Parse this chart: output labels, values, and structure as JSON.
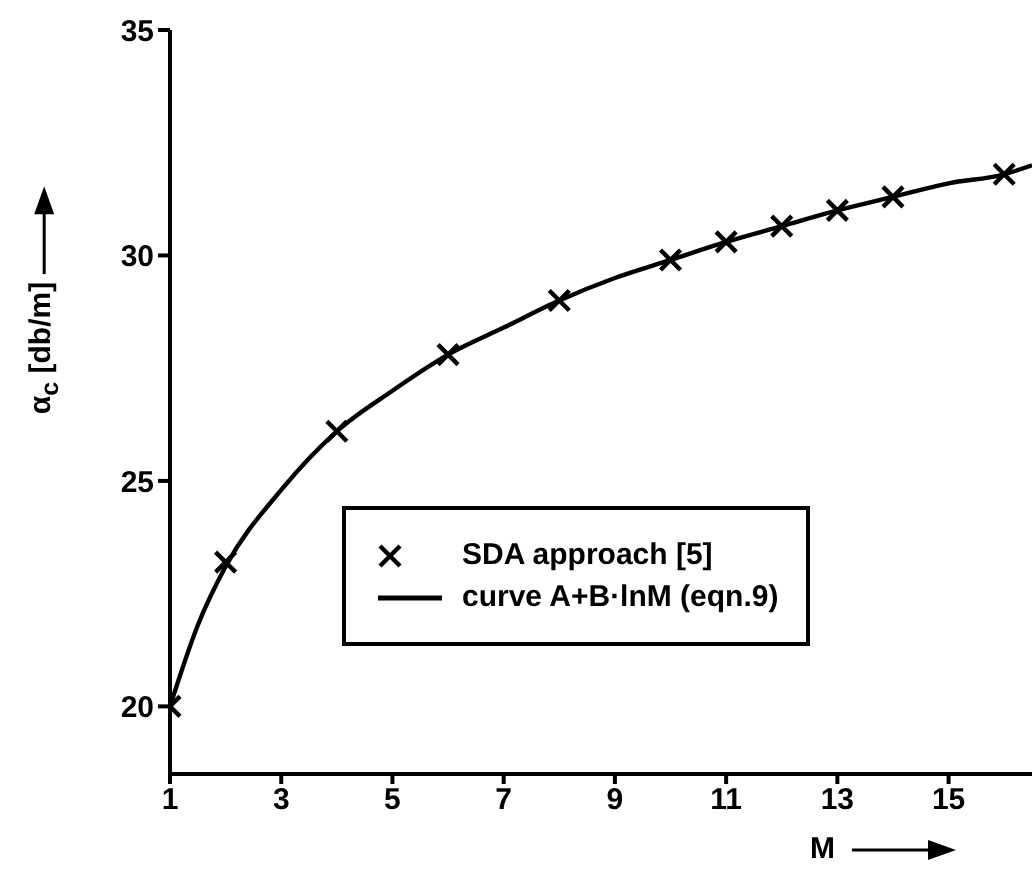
{
  "chart_data": {
    "type": "scatter",
    "xlabel": "M",
    "ylabel": "α$_{c}$ [db/m]",
    "xlim": [
      1,
      16.5
    ],
    "xticks": [
      1,
      3,
      5,
      7,
      9,
      11,
      13,
      15
    ],
    "ylim": [
      18.5,
      35
    ],
    "yticks": [
      20,
      25,
      30,
      35
    ],
    "legend": "bottom right",
    "series": [
      {
        "name": "SDA approach [5]",
        "marker": "cross",
        "color": "#000000",
        "x": [
          1,
          2,
          4,
          6,
          8,
          10,
          11,
          12,
          13,
          14,
          16
        ],
        "values": [
          20,
          23.2,
          26.1,
          27.8,
          29,
          29.9,
          30.3,
          30.65,
          31,
          31.3,
          31.8
        ]
      },
      {
        "name": "curve A+B·lnM (eqn.9)",
        "type": "line",
        "marker": "none",
        "line_style": "solid",
        "color": "#000000",
        "x": [
          1,
          1.5,
          2,
          3,
          4,
          5,
          6,
          7,
          8,
          9,
          10,
          11,
          12,
          13,
          14,
          15,
          16,
          16.5
        ],
        "values": [
          20,
          21.8,
          23.1,
          24.8,
          26.1,
          27,
          27.8,
          28.4,
          29,
          29.5,
          29.9,
          30.3,
          30.65,
          31,
          31.3,
          31.6,
          31.8,
          32
        ]
      }
    ]
  }
}
